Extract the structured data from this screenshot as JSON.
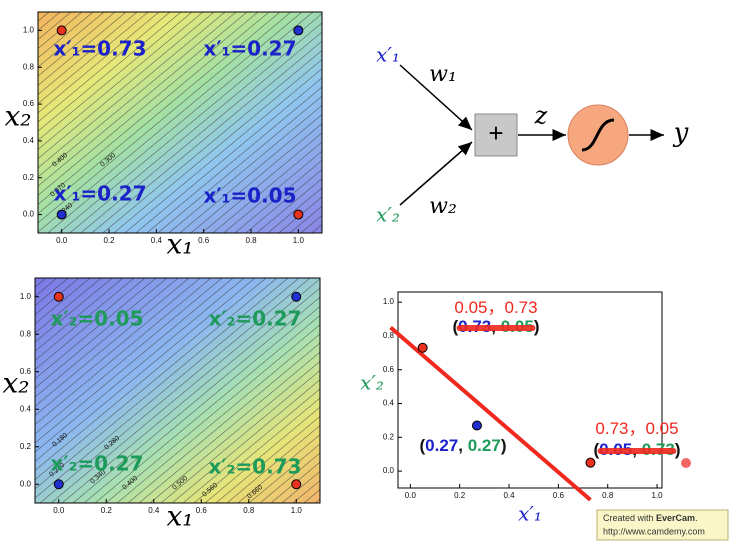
{
  "chart_data": [
    {
      "type": "contour",
      "x_label": "x₁",
      "y_label": "x₂",
      "x": [
        0,
        1,
        0,
        1
      ],
      "values": [
        1,
        1,
        0,
        0
      ],
      "colors": [
        "#e8321e",
        "#1f2fd0",
        "#1f2fd0",
        "#e8321e"
      ],
      "xlim": [
        -0.1,
        1.1
      ],
      "ylim": [
        -0.1,
        1.1
      ],
      "xticks": [
        {
          "value": 0,
          "label": "0.0"
        },
        {
          "value": 0.2,
          "label": "0.2"
        },
        {
          "value": 0.4,
          "label": "0.4"
        },
        {
          "value": 0.6,
          "label": "0.6"
        },
        {
          "value": 0.8,
          "label": "0.8"
        },
        {
          "value": 1,
          "label": "1.0"
        }
      ],
      "yticks": [
        {
          "value": 0,
          "label": "0.0"
        },
        {
          "value": 0.2,
          "label": "0.2"
        },
        {
          "value": 0.4,
          "label": "0.4"
        },
        {
          "value": 0.6,
          "label": "0.6"
        },
        {
          "value": 0.8,
          "label": "0.8"
        },
        {
          "value": 1,
          "label": "1.0"
        }
      ],
      "annotations": [
        "x′₁=0.73",
        "x′₁=0.27",
        "x′₁=0.27",
        "x′₁=0.05"
      ],
      "annotation_color": "#1a22c8",
      "contour_labels": [
        "0.400",
        "0.300",
        "0.370",
        "0.240"
      ]
    },
    {
      "type": "contour",
      "x_label": "x₁",
      "y_label": "x₂",
      "x": [
        0,
        1,
        0,
        1
      ],
      "values": [
        1,
        1,
        0,
        0
      ],
      "colors": [
        "#e8321e",
        "#1f2fd0",
        "#1f2fd0",
        "#e8321e"
      ],
      "xlim": [
        -0.1,
        1.1
      ],
      "ylim": [
        -0.1,
        1.1
      ],
      "xticks": [
        {
          "value": 0,
          "label": "0.0"
        },
        {
          "value": 0.2,
          "label": "0.2"
        },
        {
          "value": 0.4,
          "label": "0.4"
        },
        {
          "value": 0.6,
          "label": "0.6"
        },
        {
          "value": 0.8,
          "label": "0.8"
        },
        {
          "value": 1,
          "label": "1.0"
        }
      ],
      "yticks": [
        {
          "value": 0,
          "label": "0.0"
        },
        {
          "value": 0.2,
          "label": "0.2"
        },
        {
          "value": 0.4,
          "label": "0.4"
        },
        {
          "value": 0.6,
          "label": "0.6"
        },
        {
          "value": 0.8,
          "label": "0.8"
        },
        {
          "value": 1,
          "label": "1.0"
        }
      ],
      "annotations": [
        "x′₂=0.05",
        "x′₂=0.27",
        "x′₂=0.27",
        "x′₂=0.73"
      ],
      "annotation_color": "#1e9a5a",
      "contour_labels": [
        "0.180",
        "0.280",
        "0.240",
        "0.340",
        "0.400",
        "0.500",
        "0.560",
        "0.660"
      ]
    },
    {
      "type": "scatter",
      "x_label": "x′₁",
      "y_label": "x′₂",
      "x_label_color": "#1a22c8",
      "y_label_color": "#1e9a5a",
      "x": [
        0.05,
        0.27,
        0.73
      ],
      "values": [
        0.73,
        0.27,
        0.05
      ],
      "colors": [
        "#e8321e",
        "#1f2fd0",
        "#e8321e"
      ],
      "xlim": [
        -0.05,
        1.02
      ],
      "ylim": [
        -0.1,
        1.06
      ],
      "xticks": [
        {
          "value": 0,
          "label": "0.0"
        },
        {
          "value": 0.2,
          "label": "0.2"
        },
        {
          "value": 0.4,
          "label": "0.4"
        },
        {
          "value": 0.6,
          "label": "0.6"
        },
        {
          "value": 0.8,
          "label": "0.8"
        },
        {
          "value": 1,
          "label": "1.0"
        }
      ],
      "yticks": [
        {
          "value": 0,
          "label": "0.0"
        },
        {
          "value": 0.2,
          "label": "0.2"
        },
        {
          "value": 0.4,
          "label": "0.4"
        },
        {
          "value": 0.6,
          "label": "0.6"
        },
        {
          "value": 0.8,
          "label": "0.8"
        },
        {
          "value": 1,
          "label": "1.0"
        }
      ],
      "line": {
        "x": [
          -0.08,
          0.73
        ],
        "values": [
          0.85,
          -0.17
        ],
        "color": "#f0281e"
      },
      "annotations": [
        {
          "parts": [
            {
              "text": "0.05，0.73",
              "color": "#f0281e"
            }
          ],
          "struck": false
        },
        {
          "parts": [
            {
              "text": "(",
              "color": "#111111"
            },
            {
              "text": "0.73",
              "color": "#1a22c8"
            },
            {
              "text": ", ",
              "color": "#111111"
            },
            {
              "text": "0.05",
              "color": "#1e9a5a"
            },
            {
              "text": ")",
              "color": "#111111"
            }
          ],
          "struck": true
        },
        {
          "parts": [
            {
              "text": "(",
              "color": "#111111"
            },
            {
              "text": "0.27",
              "color": "#1a22c8"
            },
            {
              "text": ", ",
              "color": "#111111"
            },
            {
              "text": "0.27",
              "color": "#1e9a5a"
            },
            {
              "text": ")",
              "color": "#111111"
            }
          ],
          "struck": false
        },
        {
          "parts": [
            {
              "text": "0.73，0.05",
              "color": "#f0281e"
            }
          ],
          "struck": false
        },
        {
          "parts": [
            {
              "text": "(",
              "color": "#111111"
            },
            {
              "text": "0.05",
              "color": "#1a22c8"
            },
            {
              "text": ", ",
              "color": "#111111"
            },
            {
              "text": "0.73",
              "color": "#1e9a5a"
            },
            {
              "text": ")",
              "color": "#111111"
            }
          ],
          "struck": true
        }
      ]
    }
  ],
  "diagram": {
    "inputs": [
      {
        "label": "x′₁",
        "color": "#1a22c8"
      },
      {
        "label": "x′₂",
        "color": "#1e9a5a"
      }
    ],
    "weights": [
      "w₁",
      "w₂"
    ],
    "sum": "+",
    "z": "z",
    "output": "y"
  },
  "watermark": {
    "parts": [
      "Created with ",
      "EverCam",
      "."
    ],
    "url": "http://www.camdemy.com"
  }
}
